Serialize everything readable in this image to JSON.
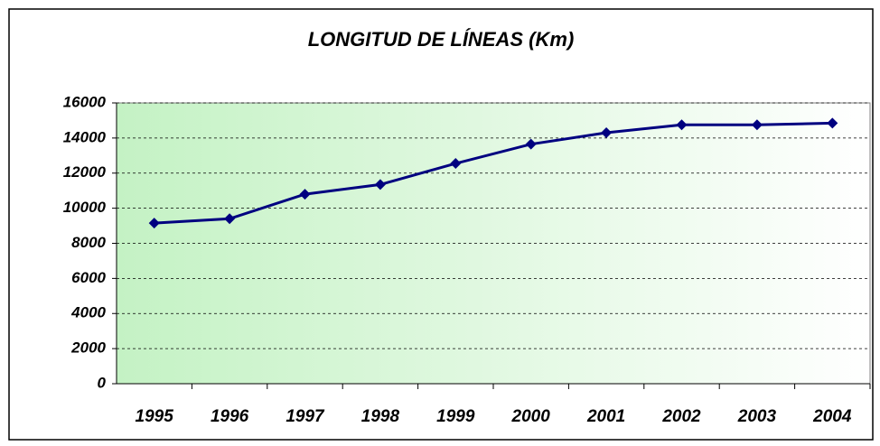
{
  "chart_data": {
    "type": "line",
    "title": "LONGITUD DE LÍNEAS (Km)",
    "categories": [
      "1995",
      "1996",
      "1997",
      "1998",
      "1999",
      "2000",
      "2001",
      "2002",
      "2003",
      "2004"
    ],
    "series": [
      {
        "name": "Longitud",
        "color": "#000080",
        "values": [
          9150,
          9400,
          10800,
          11350,
          12550,
          13650,
          14300,
          14750,
          14750,
          14850
        ]
      }
    ],
    "ylim": [
      0,
      16000
    ],
    "yticks": [
      0,
      2000,
      4000,
      6000,
      8000,
      10000,
      12000,
      14000,
      16000
    ],
    "grid": true
  }
}
